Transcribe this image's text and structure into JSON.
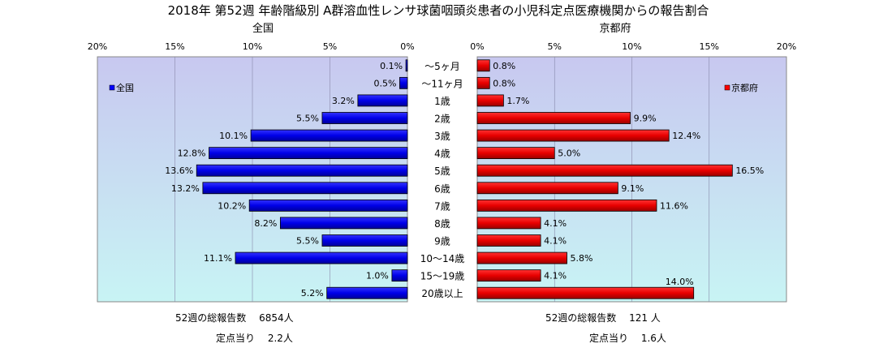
{
  "chart_data": {
    "type": "bar",
    "title": "2018年 第52週 年齢階級別 A群溶血性レンサ球菌咽頭炎患者の小児科定点医療機関からの報告割合",
    "categories": [
      "～5ヶ月",
      "～11ヶ月",
      "1歳",
      "2歳",
      "3歳",
      "4歳",
      "5歳",
      "6歳",
      "7歳",
      "8歳",
      "9歳",
      "10～14歳",
      "15～19歳",
      "20歳以上"
    ],
    "unit": "%",
    "panels": [
      {
        "name": "全国",
        "legend": "全国",
        "color": "#0000ff",
        "direction": "left",
        "xlim": [
          0,
          20
        ],
        "ticks": [
          "20%",
          "15%",
          "10%",
          "5%",
          "0%"
        ],
        "values": [
          0.1,
          0.5,
          3.2,
          5.5,
          10.1,
          12.8,
          13.6,
          13.2,
          10.2,
          8.2,
          5.5,
          11.1,
          1.0,
          5.2
        ],
        "labels": [
          "0.1%",
          "0.5%",
          "3.2%",
          "5.5%",
          "10.1%",
          "12.8%",
          "13.6%",
          "13.2%",
          "10.2%",
          "8.2%",
          "5.5%",
          "11.1%",
          "1.0%",
          "5.2%"
        ]
      },
      {
        "name": "京都府",
        "legend": "京都府",
        "color": "#ff0000",
        "direction": "right",
        "xlim": [
          0,
          20
        ],
        "ticks": [
          "0%",
          "5%",
          "10%",
          "15%",
          "20%"
        ],
        "values": [
          0.8,
          0.8,
          1.7,
          9.9,
          12.4,
          5.0,
          16.5,
          9.1,
          11.6,
          4.1,
          4.1,
          5.8,
          4.1,
          14.0
        ],
        "labels": [
          "0.8%",
          "0.8%",
          "1.7%",
          "9.9%",
          "12.4%",
          "5.0%",
          "16.5%",
          "9.1%",
          "11.6%",
          "4.1%",
          "4.1%",
          "5.8%",
          "4.1%",
          "14.0%"
        ]
      }
    ],
    "grid": true,
    "legend_position": "top-left / top-right"
  },
  "footer": {
    "national_total": "52週の総報告数　 6854人",
    "national_per_site": "定点当り　 2.2人",
    "kyoto_total": "52週の総報告数　 121 人",
    "kyoto_per_site": "定点当り　 1.6人"
  }
}
